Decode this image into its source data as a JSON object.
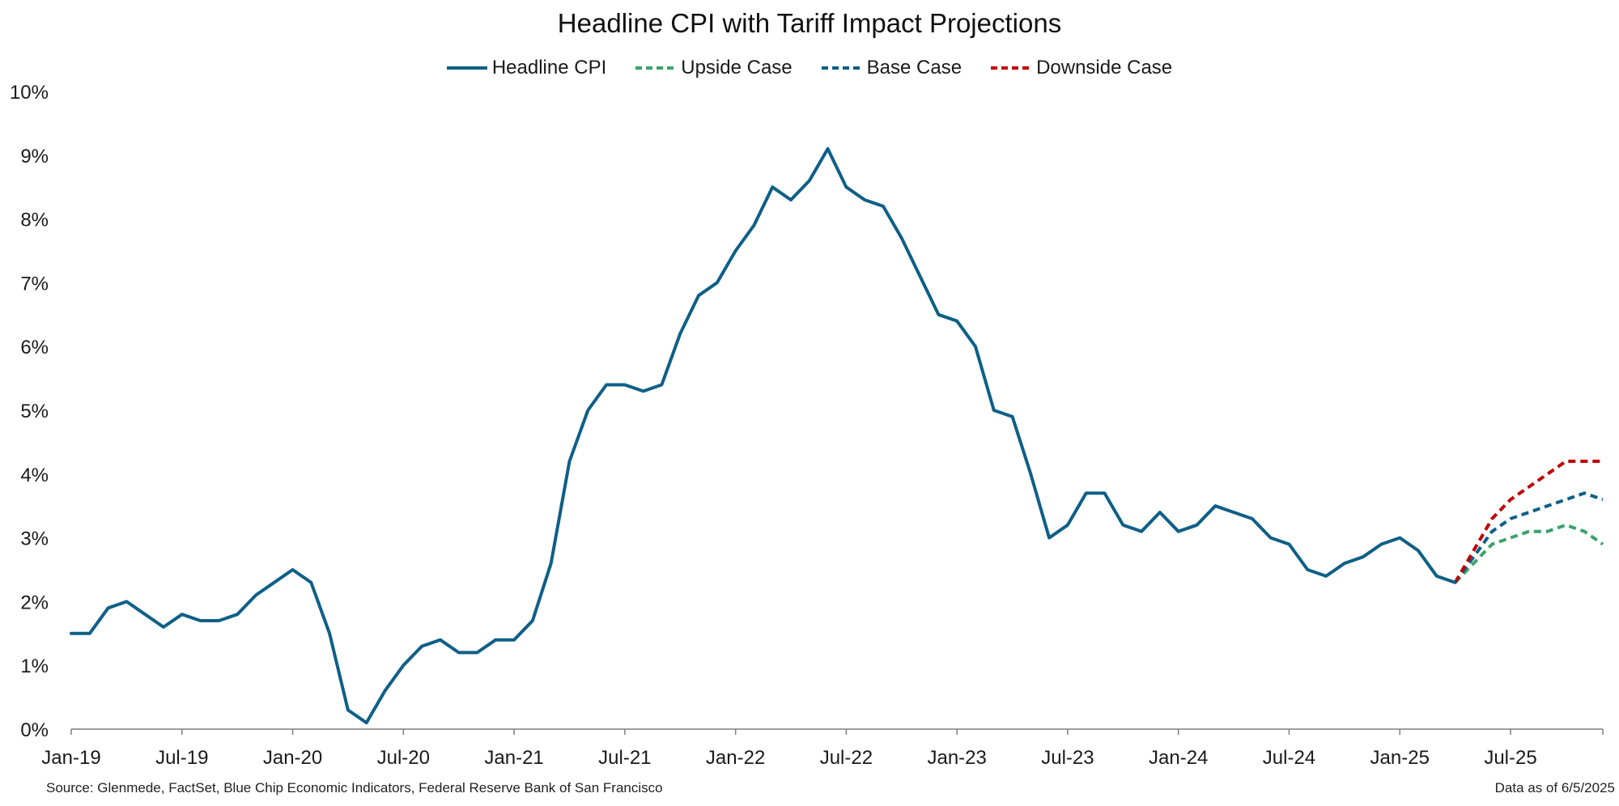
{
  "chart_data": {
    "type": "line",
    "title": "Headline CPI with Tariff Impact Projections",
    "ylim": [
      0,
      10
    ],
    "y_ticks": [
      "0%",
      "1%",
      "2%",
      "3%",
      "4%",
      "5%",
      "6%",
      "7%",
      "8%",
      "9%",
      "10%"
    ],
    "x_tick_labels": [
      "Jan-19",
      "Jul-19",
      "Jan-20",
      "Jul-20",
      "Jan-21",
      "Jul-21",
      "Jan-22",
      "Jul-22",
      "Jan-23",
      "Jul-23",
      "Jan-24",
      "Jul-24",
      "Jan-25",
      "Jul-25"
    ],
    "x_tick_months": [
      "2019-01",
      "2019-07",
      "2020-01",
      "2020-07",
      "2021-01",
      "2021-07",
      "2022-01",
      "2022-07",
      "2023-01",
      "2023-07",
      "2024-01",
      "2024-07",
      "2025-01",
      "2025-07"
    ],
    "x_range": [
      "2019-01",
      "2025-12"
    ],
    "grid": false,
    "legend_position": "top-center",
    "series": [
      {
        "name": "Headline CPI",
        "color": "#0e5f87",
        "style": "solid",
        "x": [
          "2019-01",
          "2019-02",
          "2019-03",
          "2019-04",
          "2019-05",
          "2019-06",
          "2019-07",
          "2019-08",
          "2019-09",
          "2019-10",
          "2019-11",
          "2019-12",
          "2020-01",
          "2020-02",
          "2020-03",
          "2020-04",
          "2020-05",
          "2020-06",
          "2020-07",
          "2020-08",
          "2020-09",
          "2020-10",
          "2020-11",
          "2020-12",
          "2021-01",
          "2021-02",
          "2021-03",
          "2021-04",
          "2021-05",
          "2021-06",
          "2021-07",
          "2021-08",
          "2021-09",
          "2021-10",
          "2021-11",
          "2021-12",
          "2022-01",
          "2022-02",
          "2022-03",
          "2022-04",
          "2022-05",
          "2022-06",
          "2022-07",
          "2022-08",
          "2022-09",
          "2022-10",
          "2022-11",
          "2022-12",
          "2023-01",
          "2023-02",
          "2023-03",
          "2023-04",
          "2023-05",
          "2023-06",
          "2023-07",
          "2023-08",
          "2023-09",
          "2023-10",
          "2023-11",
          "2023-12",
          "2024-01",
          "2024-02",
          "2024-03",
          "2024-04",
          "2024-05",
          "2024-06",
          "2024-07",
          "2024-08",
          "2024-09",
          "2024-10",
          "2024-11",
          "2024-12",
          "2025-01",
          "2025-02",
          "2025-03",
          "2025-04"
        ],
        "values": [
          1.5,
          1.5,
          1.9,
          2.0,
          1.8,
          1.6,
          1.8,
          1.7,
          1.7,
          1.8,
          2.1,
          2.3,
          2.5,
          2.3,
          1.5,
          0.3,
          0.1,
          0.6,
          1.0,
          1.3,
          1.4,
          1.2,
          1.2,
          1.4,
          1.4,
          1.7,
          2.6,
          4.2,
          5.0,
          5.4,
          5.4,
          5.3,
          5.4,
          6.2,
          6.8,
          7.0,
          7.5,
          7.9,
          8.5,
          8.3,
          8.6,
          9.1,
          8.5,
          8.3,
          8.2,
          7.7,
          7.1,
          6.5,
          6.4,
          6.0,
          5.0,
          4.9,
          4.0,
          3.0,
          3.2,
          3.7,
          3.7,
          3.2,
          3.1,
          3.4,
          3.1,
          3.2,
          3.5,
          3.4,
          3.3,
          3.0,
          2.9,
          2.5,
          2.4,
          2.6,
          2.7,
          2.9,
          3.0,
          2.8,
          2.4,
          2.3
        ]
      },
      {
        "name": "Upside Case",
        "color": "#3aa36a",
        "style": "dashed",
        "x": [
          "2025-04",
          "2025-05",
          "2025-06",
          "2025-07",
          "2025-08",
          "2025-09",
          "2025-10",
          "2025-11",
          "2025-12"
        ],
        "values": [
          2.3,
          2.6,
          2.9,
          3.0,
          3.1,
          3.1,
          3.2,
          3.1,
          2.9
        ]
      },
      {
        "name": "Base Case",
        "color": "#0e5f87",
        "style": "dashed",
        "x": [
          "2025-04",
          "2025-05",
          "2025-06",
          "2025-07",
          "2025-08",
          "2025-09",
          "2025-10",
          "2025-11",
          "2025-12"
        ],
        "values": [
          2.3,
          2.7,
          3.1,
          3.3,
          3.4,
          3.5,
          3.6,
          3.7,
          3.6
        ]
      },
      {
        "name": "Downside Case",
        "color": "#c00000",
        "style": "dashed",
        "x": [
          "2025-04",
          "2025-05",
          "2025-06",
          "2025-07",
          "2025-08",
          "2025-09",
          "2025-10",
          "2025-11",
          "2025-12"
        ],
        "values": [
          2.3,
          2.8,
          3.3,
          3.6,
          3.8,
          4.0,
          4.2,
          4.2,
          4.2
        ]
      }
    ]
  },
  "footer": {
    "source": "Source: Glenmede, FactSet, Blue Chip Economic Indicators, Federal Reserve Bank of San Francisco",
    "as_of": "Data as of 6/5/2025"
  }
}
